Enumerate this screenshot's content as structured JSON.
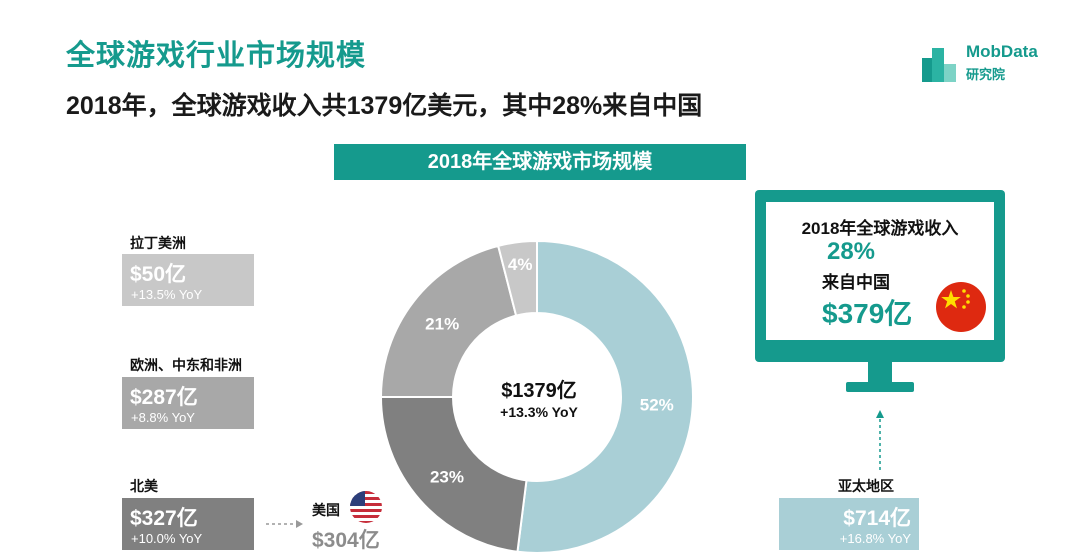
{
  "title": "全球游戏行业市场规模",
  "subtitle": "2018年，全球游戏收入共1379亿美元，其中28%来自中国",
  "logo": {
    "line1": "MobData",
    "line2": "研究院"
  },
  "banner": "2018年全球游戏市场规模",
  "regions": [
    {
      "name": "拉丁美洲",
      "value": "$50亿",
      "yoy": "+13.5% YoY",
      "color": "#c8c8c8"
    },
    {
      "name": "欧洲、中东和非洲",
      "value": "$287亿",
      "yoy": "+8.8% YoY",
      "color": "#a8a8a8"
    },
    {
      "name": "北美",
      "value": "$327亿",
      "yoy": "+10.0% YoY",
      "color": "#808080"
    },
    {
      "name": "亚太地区",
      "value": "$714亿",
      "yoy": "+16.8% YoY",
      "color": "#a9cfd6"
    }
  ],
  "usa": {
    "name": "美国",
    "value": "$304亿",
    "flag_icon": "us-flag-icon"
  },
  "center": {
    "value": "$1379亿",
    "yoy": "+13.3% YoY"
  },
  "monitor": {
    "line1": "2018年全球游戏收入",
    "line2": "28%",
    "line3": "来自中国",
    "line4": "$379亿",
    "flag_icon": "china-flag-icon"
  },
  "colors": {
    "accent": "#159a8d"
  },
  "chart_data": {
    "type": "pie",
    "donut": true,
    "title": "2018年全球游戏市场规模",
    "center_text": "$1379亿 +13.3% YoY",
    "categories": [
      "亚太地区",
      "北美",
      "欧洲、中东和非洲",
      "拉丁美洲"
    ],
    "values": [
      52,
      23,
      21,
      4
    ],
    "amounts": [
      "$714亿",
      "$327亿",
      "$287亿",
      "$50亿"
    ],
    "labels": [
      "52%",
      "23%",
      "21%",
      "4%"
    ],
    "colors": [
      "#a9cfd6",
      "#808080",
      "#a8a8a8",
      "#c8c8c8"
    ]
  }
}
